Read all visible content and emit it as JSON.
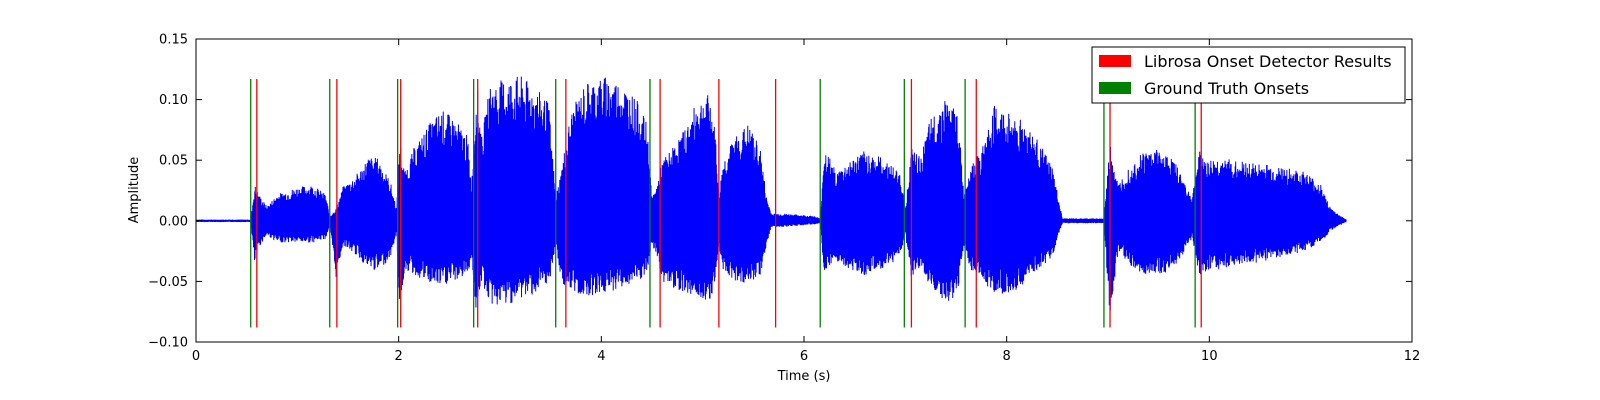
{
  "chart_data": {
    "type": "line",
    "xlabel": "Time (s)",
    "ylabel": "Amplitude",
    "xlim": [
      0,
      12
    ],
    "ylim": [
      -0.1,
      0.15
    ],
    "x_ticks": [
      0,
      2,
      4,
      6,
      8,
      10,
      12
    ],
    "x_tick_labels": [
      "0",
      "2",
      "4",
      "6",
      "8",
      "10",
      "12"
    ],
    "y_ticks": [
      -0.1,
      -0.05,
      0.0,
      0.05,
      0.1,
      0.15
    ],
    "y_tick_labels": [
      "−0.10",
      "−0.05",
      "0.00",
      "0.05",
      "0.10",
      "0.15"
    ],
    "grid": false,
    "legend_position": "top-right",
    "legend": [
      {
        "label": "Librosa Onset Detector Results",
        "color": "#ff0000"
      },
      {
        "label": "Ground Truth Onsets",
        "color": "#008000"
      }
    ],
    "onset_line_range": [
      -0.088,
      0.117
    ],
    "librosa_onsets": [
      0.6,
      1.39,
      2.02,
      2.78,
      3.65,
      4.58,
      5.16,
      5.72,
      7.06,
      7.7,
      9.02,
      9.92
    ],
    "ground_truth_onsets": [
      0.54,
      1.32,
      1.99,
      2.74,
      3.55,
      4.48,
      6.16,
      6.99,
      7.59,
      8.96,
      9.86
    ],
    "waveform": {
      "name": "",
      "color": "#0000ff",
      "envelope_upper": [
        [
          0.0,
          0.001
        ],
        [
          0.54,
          0.001
        ],
        [
          0.58,
          0.03
        ],
        [
          0.62,
          0.022
        ],
        [
          0.7,
          0.012
        ],
        [
          0.8,
          0.022
        ],
        [
          1.0,
          0.028
        ],
        [
          1.15,
          0.03
        ],
        [
          1.28,
          0.022
        ],
        [
          1.32,
          0.004
        ],
        [
          1.38,
          0.01
        ],
        [
          1.45,
          0.028
        ],
        [
          1.6,
          0.04
        ],
        [
          1.7,
          0.053
        ],
        [
          1.8,
          0.052
        ],
        [
          1.92,
          0.032
        ],
        [
          1.98,
          0.01
        ],
        [
          2.01,
          0.068
        ],
        [
          2.06,
          0.04
        ],
        [
          2.15,
          0.06
        ],
        [
          2.3,
          0.08
        ],
        [
          2.42,
          0.092
        ],
        [
          2.55,
          0.085
        ],
        [
          2.68,
          0.07
        ],
        [
          2.72,
          0.03
        ],
        [
          2.77,
          0.118
        ],
        [
          2.82,
          0.07
        ],
        [
          2.9,
          0.112
        ],
        [
          3.05,
          0.118
        ],
        [
          3.2,
          0.12
        ],
        [
          3.35,
          0.11
        ],
        [
          3.48,
          0.098
        ],
        [
          3.55,
          0.02
        ],
        [
          3.6,
          0.04
        ],
        [
          3.7,
          0.09
        ],
        [
          3.85,
          0.115
        ],
        [
          4.05,
          0.12
        ],
        [
          4.2,
          0.115
        ],
        [
          4.35,
          0.1
        ],
        [
          4.45,
          0.08
        ],
        [
          4.5,
          0.02
        ],
        [
          4.55,
          0.03
        ],
        [
          4.6,
          0.05
        ],
        [
          4.7,
          0.06
        ],
        [
          4.85,
          0.08
        ],
        [
          4.95,
          0.1
        ],
        [
          5.07,
          0.105
        ],
        [
          5.13,
          0.07
        ],
        [
          5.16,
          0.02
        ],
        [
          5.2,
          0.05
        ],
        [
          5.32,
          0.07
        ],
        [
          5.45,
          0.08
        ],
        [
          5.57,
          0.06
        ],
        [
          5.63,
          0.02
        ],
        [
          5.68,
          0.006
        ],
        [
          5.8,
          0.006
        ],
        [
          5.95,
          0.005
        ],
        [
          6.1,
          0.004
        ],
        [
          6.16,
          0.002
        ],
        [
          6.2,
          0.062
        ],
        [
          6.32,
          0.04
        ],
        [
          6.45,
          0.05
        ],
        [
          6.6,
          0.058
        ],
        [
          6.78,
          0.052
        ],
        [
          6.95,
          0.04
        ],
        [
          7.0,
          0.01
        ],
        [
          7.06,
          0.06
        ],
        [
          7.15,
          0.052
        ],
        [
          7.25,
          0.085
        ],
        [
          7.4,
          0.102
        ],
        [
          7.52,
          0.09
        ],
        [
          7.58,
          0.02
        ],
        [
          7.64,
          0.05
        ],
        [
          7.74,
          0.055
        ],
        [
          7.88,
          0.095
        ],
        [
          8.0,
          0.09
        ],
        [
          8.15,
          0.085
        ],
        [
          8.32,
          0.065
        ],
        [
          8.45,
          0.045
        ],
        [
          8.55,
          0.002
        ],
        [
          8.96,
          0.002
        ],
        [
          9.02,
          0.065
        ],
        [
          9.1,
          0.03
        ],
        [
          9.2,
          0.045
        ],
        [
          9.35,
          0.058
        ],
        [
          9.5,
          0.06
        ],
        [
          9.65,
          0.05
        ],
        [
          9.83,
          0.02
        ],
        [
          9.9,
          0.058
        ],
        [
          10.0,
          0.05
        ],
        [
          10.1,
          0.052
        ],
        [
          10.25,
          0.05
        ],
        [
          10.45,
          0.048
        ],
        [
          10.7,
          0.045
        ],
        [
          10.95,
          0.04
        ],
        [
          11.1,
          0.03
        ],
        [
          11.2,
          0.01
        ],
        [
          11.35,
          0.001
        ]
      ],
      "envelope_lower": [
        [
          0.0,
          -0.001
        ],
        [
          0.54,
          -0.001
        ],
        [
          0.58,
          -0.038
        ],
        [
          0.62,
          -0.022
        ],
        [
          0.7,
          -0.012
        ],
        [
          0.8,
          -0.018
        ],
        [
          1.0,
          -0.018
        ],
        [
          1.15,
          -0.018
        ],
        [
          1.28,
          -0.015
        ],
        [
          1.32,
          -0.004
        ],
        [
          1.38,
          -0.048
        ],
        [
          1.45,
          -0.02
        ],
        [
          1.6,
          -0.03
        ],
        [
          1.7,
          -0.04
        ],
        [
          1.8,
          -0.042
        ],
        [
          1.92,
          -0.03
        ],
        [
          1.98,
          -0.01
        ],
        [
          2.01,
          -0.075
        ],
        [
          2.06,
          -0.04
        ],
        [
          2.15,
          -0.045
        ],
        [
          2.3,
          -0.052
        ],
        [
          2.42,
          -0.055
        ],
        [
          2.55,
          -0.05
        ],
        [
          2.68,
          -0.045
        ],
        [
          2.72,
          -0.03
        ],
        [
          2.77,
          -0.083
        ],
        [
          2.82,
          -0.05
        ],
        [
          2.9,
          -0.07
        ],
        [
          3.05,
          -0.07
        ],
        [
          3.2,
          -0.065
        ],
        [
          3.35,
          -0.06
        ],
        [
          3.48,
          -0.055
        ],
        [
          3.55,
          -0.02
        ],
        [
          3.6,
          -0.05
        ],
        [
          3.7,
          -0.06
        ],
        [
          3.85,
          -0.062
        ],
        [
          4.05,
          -0.06
        ],
        [
          4.2,
          -0.055
        ],
        [
          4.35,
          -0.052
        ],
        [
          4.45,
          -0.045
        ],
        [
          4.5,
          -0.02
        ],
        [
          4.55,
          -0.03
        ],
        [
          4.6,
          -0.05
        ],
        [
          4.7,
          -0.055
        ],
        [
          4.85,
          -0.06
        ],
        [
          4.95,
          -0.063
        ],
        [
          5.07,
          -0.066
        ],
        [
          5.13,
          -0.05
        ],
        [
          5.16,
          -0.02
        ],
        [
          5.2,
          -0.04
        ],
        [
          5.32,
          -0.05
        ],
        [
          5.45,
          -0.052
        ],
        [
          5.57,
          -0.045
        ],
        [
          5.63,
          -0.02
        ],
        [
          5.68,
          -0.005
        ],
        [
          5.8,
          -0.005
        ],
        [
          5.95,
          -0.004
        ],
        [
          6.1,
          -0.003
        ],
        [
          6.16,
          -0.002
        ],
        [
          6.2,
          -0.045
        ],
        [
          6.32,
          -0.035
        ],
        [
          6.45,
          -0.04
        ],
        [
          6.6,
          -0.045
        ],
        [
          6.78,
          -0.04
        ],
        [
          6.95,
          -0.03
        ],
        [
          7.0,
          -0.01
        ],
        [
          7.06,
          -0.05
        ],
        [
          7.15,
          -0.04
        ],
        [
          7.25,
          -0.055
        ],
        [
          7.4,
          -0.07
        ],
        [
          7.52,
          -0.06
        ],
        [
          7.58,
          -0.02
        ],
        [
          7.64,
          -0.04
        ],
        [
          7.74,
          -0.048
        ],
        [
          7.88,
          -0.06
        ],
        [
          8.0,
          -0.06
        ],
        [
          8.15,
          -0.055
        ],
        [
          8.32,
          -0.04
        ],
        [
          8.45,
          -0.03
        ],
        [
          8.55,
          -0.002
        ],
        [
          8.96,
          -0.002
        ],
        [
          9.02,
          -0.083
        ],
        [
          9.1,
          -0.025
        ],
        [
          9.2,
          -0.035
        ],
        [
          9.35,
          -0.045
        ],
        [
          9.5,
          -0.045
        ],
        [
          9.65,
          -0.04
        ],
        [
          9.83,
          -0.015
        ],
        [
          9.9,
          -0.045
        ],
        [
          10.0,
          -0.04
        ],
        [
          10.1,
          -0.04
        ],
        [
          10.25,
          -0.038
        ],
        [
          10.45,
          -0.035
        ],
        [
          10.7,
          -0.03
        ],
        [
          10.95,
          -0.025
        ],
        [
          11.1,
          -0.018
        ],
        [
          11.2,
          -0.008
        ],
        [
          11.35,
          -0.001
        ]
      ]
    }
  }
}
